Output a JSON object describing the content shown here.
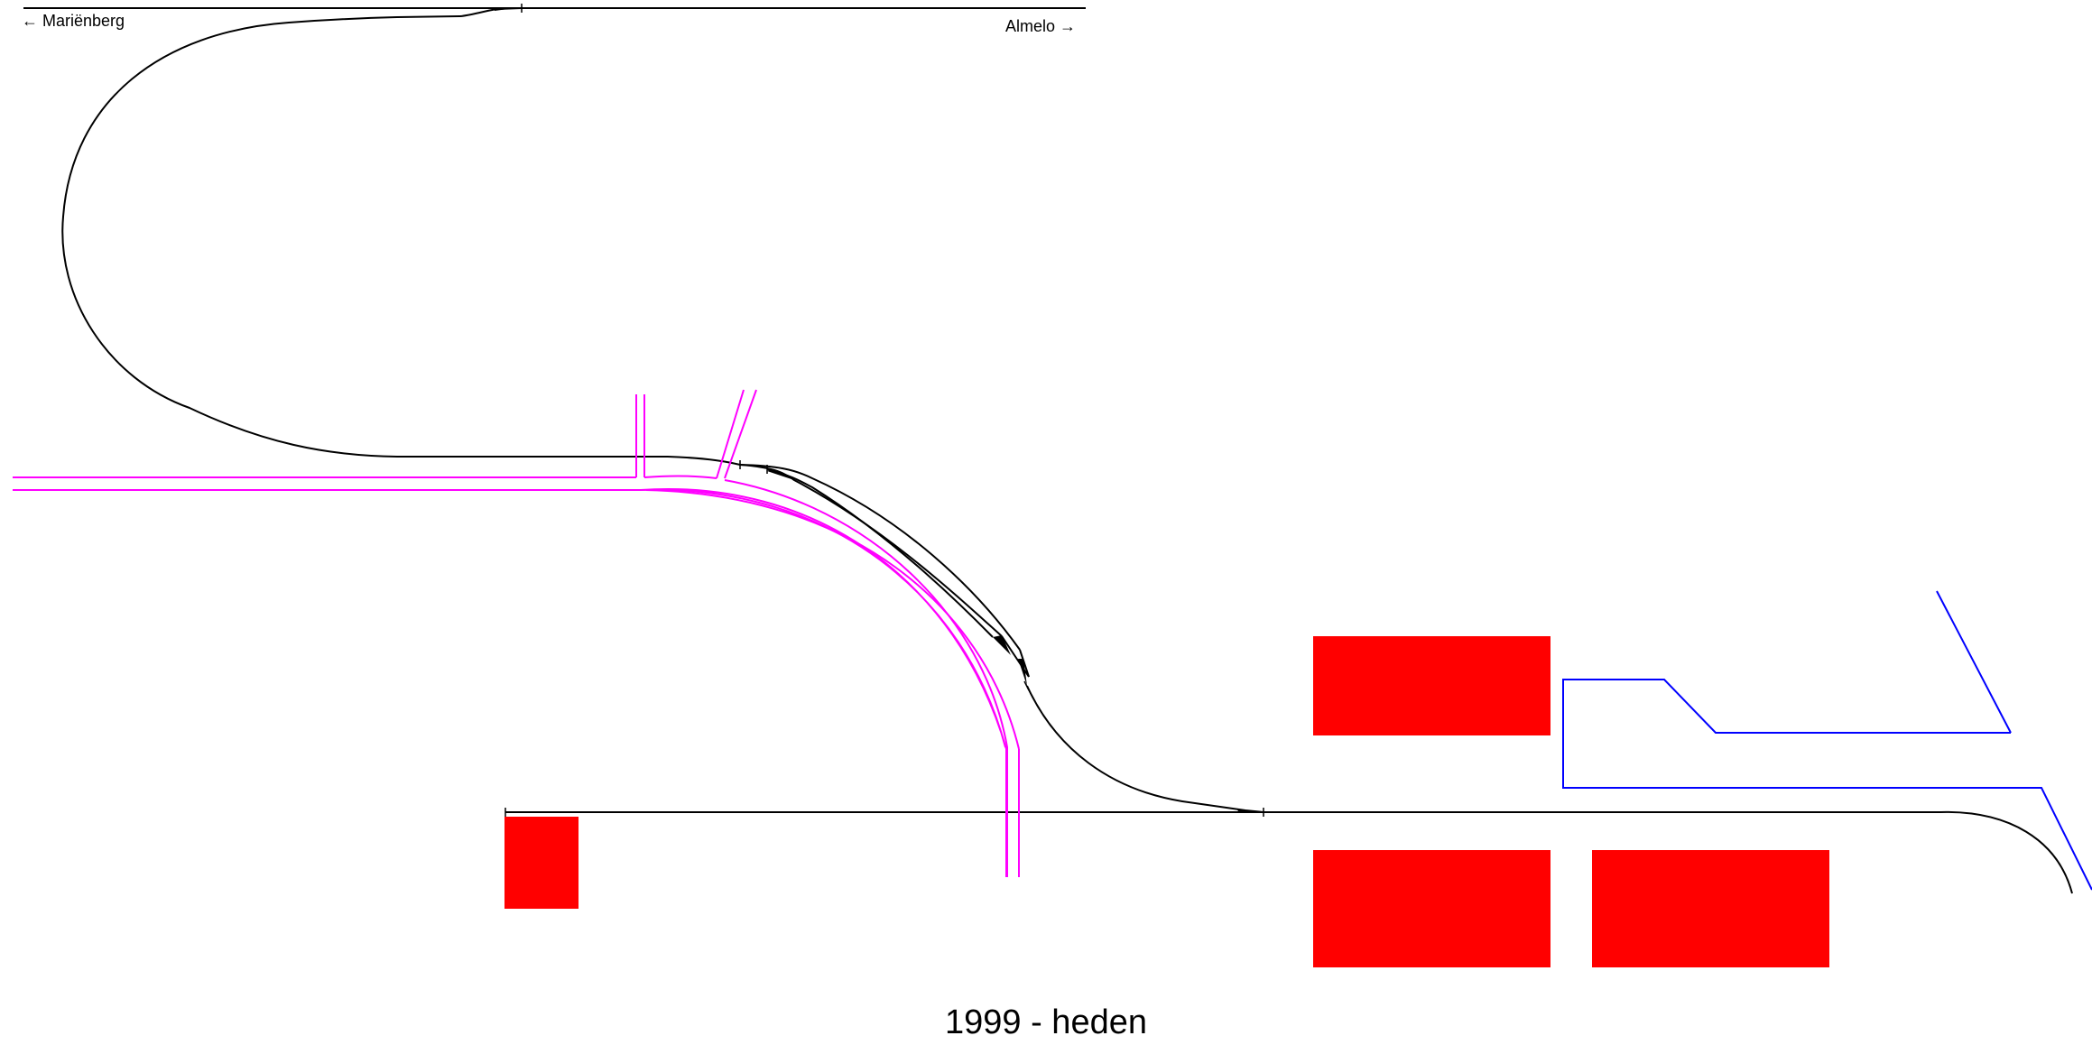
{
  "labels": {
    "left_direction": "← Mariënberg",
    "right_direction": "Almelo →",
    "caption": "1999 - heden"
  },
  "colors": {
    "track": "#000000",
    "road": "#ff00ff",
    "building": "#ff0000",
    "boundary": "#0000ff",
    "background": "#ffffff"
  }
}
